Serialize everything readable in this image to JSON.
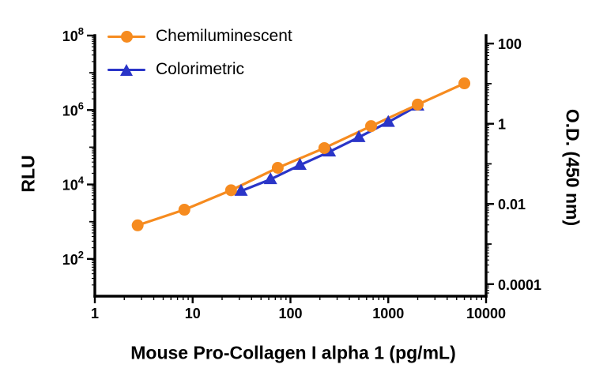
{
  "chart_data": {
    "type": "line",
    "title": "",
    "xlabel": "Mouse Pro-Collagen I alpha 1 (pg/mL)",
    "legend_position": "top-left",
    "grid": false,
    "x_axis": {
      "scale": "log",
      "range_log10": [
        0,
        4
      ],
      "major_ticks": [
        {
          "value": 1,
          "label": "1"
        },
        {
          "value": 10,
          "label": "10"
        },
        {
          "value": 100,
          "label": "100"
        },
        {
          "value": 1000,
          "label": "1000"
        },
        {
          "value": 10000,
          "label": "10000"
        }
      ]
    },
    "left_axis": {
      "label": "RLU",
      "scale": "log",
      "range_log10": [
        1,
        8
      ],
      "major_tick_exponents": [
        2,
        4,
        6,
        8
      ],
      "minor_tick_exponents": [
        3,
        5,
        7
      ]
    },
    "right_axis": {
      "label": "O.D. (450 nm)",
      "scale": "log",
      "range_log10": [
        -4.3,
        2.2
      ],
      "major_ticks": [
        {
          "value": 100,
          "label": "100"
        },
        {
          "value": 1,
          "label": "1"
        },
        {
          "value": 0.01,
          "label": "0.01"
        },
        {
          "value": 0.0001,
          "label": "0.0001"
        }
      ],
      "minor_tick_exponents": [
        1,
        -1,
        -3
      ]
    },
    "series": [
      {
        "name": "Chemiluminescent",
        "axis": "left",
        "color": "#F68B1F",
        "marker": "circle",
        "x": [
          2.74,
          8.23,
          24.7,
          74.1,
          222,
          667,
          2000,
          6000
        ],
        "y": [
          800,
          2100,
          7000,
          28000,
          95000,
          370000,
          1400000,
          5200000
        ]
      },
      {
        "name": "Colorimetric",
        "axis": "right",
        "color": "#2A35C8",
        "marker": "triangle",
        "x": [
          31.25,
          62.5,
          125,
          250,
          500,
          1000,
          2000
        ],
        "y": [
          0.021,
          0.041,
          0.093,
          0.2,
          0.46,
          1.1,
          2.8
        ]
      }
    ]
  }
}
